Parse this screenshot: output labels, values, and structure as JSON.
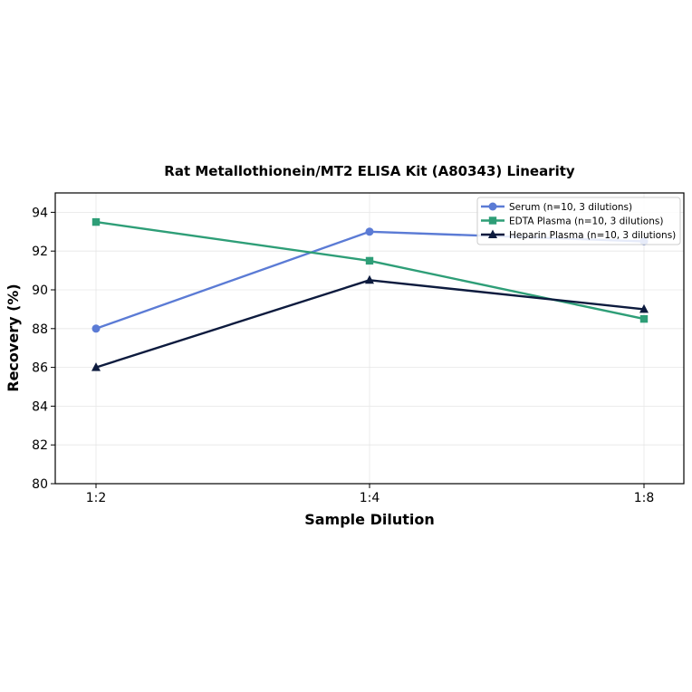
{
  "chart_data": {
    "type": "line",
    "title": "Rat Metallothionein/MT2 ELISA Kit (A80343) Linearity",
    "xlabel": "Sample Dilution",
    "ylabel": "Recovery (%)",
    "categories": [
      "1:2",
      "1:4",
      "1:8"
    ],
    "ylim": [
      80,
      95
    ],
    "yticks": [
      "80",
      "82",
      "84",
      "86",
      "88",
      "90",
      "92",
      "94"
    ],
    "grid": true,
    "legend_position": "top-right",
    "series": [
      {
        "name": "Serum (n=10, 3 dilutions)",
        "values": [
          88.0,
          93.0,
          92.5
        ],
        "color": "#5b7bd5",
        "marker": "circle"
      },
      {
        "name": "EDTA Plasma (n=10, 3 dilutions)",
        "values": [
          93.5,
          91.5,
          88.5
        ],
        "color": "#2e9e77",
        "marker": "square"
      },
      {
        "name": "Heparin Plasma (n=10, 3 dilutions)",
        "values": [
          86.0,
          90.5,
          89.0
        ],
        "color": "#0d1b3e",
        "marker": "triangle"
      }
    ]
  }
}
